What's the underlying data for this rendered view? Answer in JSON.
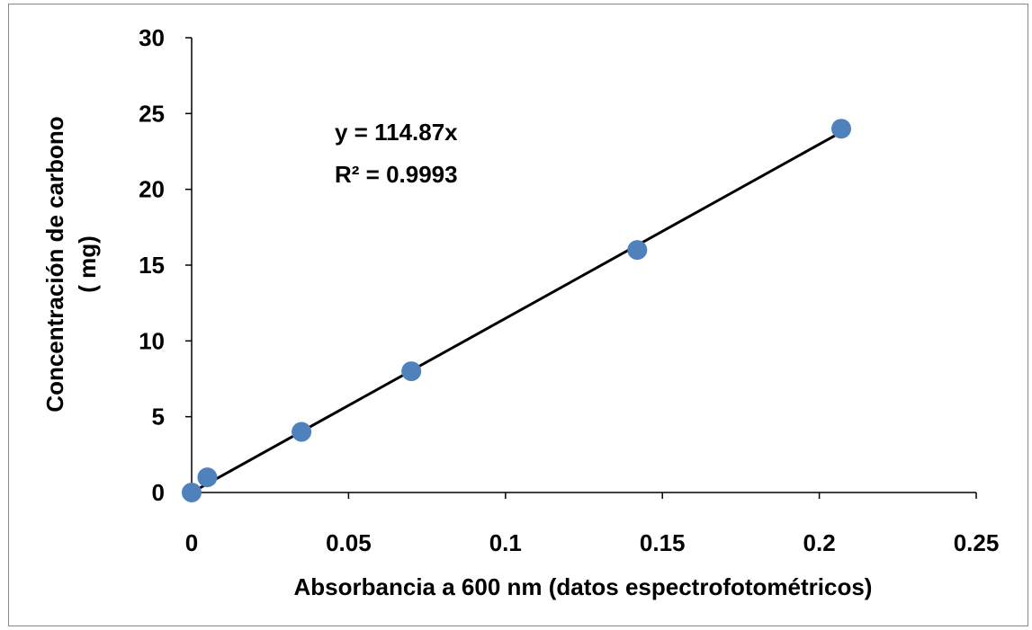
{
  "chart_data": {
    "type": "scatter",
    "xlabel": "Absorbancia a 600 nm (datos espectrofotométricos)",
    "ylabel_lines": [
      "Concentración de carbono",
      "( mg)"
    ],
    "xlim": [
      0,
      0.25
    ],
    "ylim": [
      0,
      30
    ],
    "xticks": [
      0,
      0.05,
      0.1,
      0.15,
      0.2,
      0.25
    ],
    "xtick_labels": [
      "0",
      "0.05",
      "0.1",
      "0.15",
      "0.2",
      "0.25"
    ],
    "yticks": [
      0,
      5,
      10,
      15,
      20,
      25,
      30
    ],
    "ytick_labels": [
      "0",
      "5",
      "10",
      "15",
      "20",
      "25",
      "30"
    ],
    "grid": false,
    "legend": "none",
    "series": [
      {
        "x": [
          0,
          0.005,
          0.035,
          0.07,
          0.142,
          0.207
        ],
        "y": [
          0,
          1,
          4,
          8,
          16,
          24
        ],
        "color": "#4f81bd"
      }
    ],
    "trendline": {
      "slope": 114.87,
      "intercept": 0,
      "x_range": [
        0,
        0.207
      ],
      "color": "#000000"
    },
    "annotations": [
      "y = 114.87x",
      "R² = 0.9993"
    ]
  }
}
